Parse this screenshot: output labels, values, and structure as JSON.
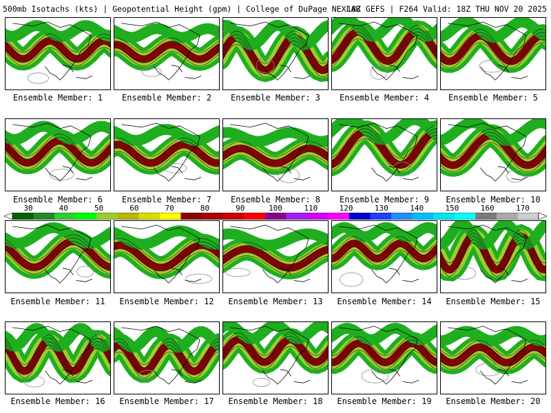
{
  "header": {
    "left": "500mb Isotachs (kts) | Geopotential Height (gpm) | College of DuPage NEXLAB",
    "right": "18Z GEFS | F264 Valid: 18Z THU NOV 20 2025"
  },
  "caption_prefix": "Ensemble Member:",
  "members": [
    {
      "label": "Ensemble Member: 1"
    },
    {
      "label": "Ensemble Member: 2"
    },
    {
      "label": "Ensemble Member: 3"
    },
    {
      "label": "Ensemble Member: 4"
    },
    {
      "label": "Ensemble Member: 5"
    },
    {
      "label": "Ensemble Member: 6"
    },
    {
      "label": "Ensemble Member: 7"
    },
    {
      "label": "Ensemble Member: 8"
    },
    {
      "label": "Ensemble Member: 9"
    },
    {
      "label": "Ensemble Member: 10"
    },
    {
      "label": "Ensemble Member: 11"
    },
    {
      "label": "Ensemble Member: 12"
    },
    {
      "label": "Ensemble Member: 13"
    },
    {
      "label": "Ensemble Member: 14"
    },
    {
      "label": "Ensemble Member: 15"
    },
    {
      "label": "Ensemble Member: 16"
    },
    {
      "label": "Ensemble Member: 17"
    },
    {
      "label": "Ensemble Member: 18"
    },
    {
      "label": "Ensemble Member: 19"
    },
    {
      "label": "Ensemble Member: 20"
    }
  ],
  "colorbar": {
    "labels": [
      "30",
      "40",
      "50",
      "60",
      "70",
      "80",
      "90",
      "100",
      "110",
      "120",
      "130",
      "140",
      "150",
      "160",
      "170"
    ],
    "colors": [
      "#006400",
      "#228b22",
      "#32cd32",
      "#00ff00",
      "#9acd32",
      "#b8b800",
      "#dcdc00",
      "#ffff00",
      "#8b0000",
      "#a50000",
      "#c80000",
      "#ff0000",
      "#8b008b",
      "#a020f0",
      "#d000ff",
      "#ff00ff",
      "#0000cd",
      "#1e40ff",
      "#1e90ff",
      "#00bfff",
      "#00e5ee",
      "#00ffff",
      "#7a7a7a",
      "#aaaaaa",
      "#cfcfcf"
    ],
    "colors_note": "ordered low to high wind speed"
  },
  "palette": {
    "jet_outer": "#1fae1f",
    "jet_mid": "#9acd32",
    "jet_core": "#8b0000",
    "jet_peak": "#5b1a9a",
    "height_contour": "#1a1a1a",
    "coast": "#000000",
    "low_contour": "#8c8c8c"
  }
}
